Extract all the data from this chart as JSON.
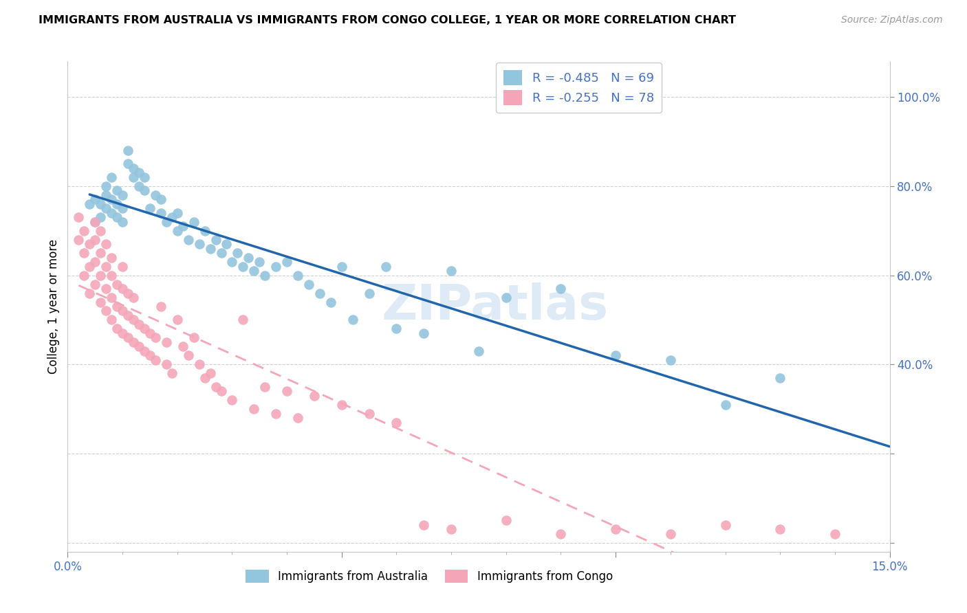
{
  "title": "IMMIGRANTS FROM AUSTRALIA VS IMMIGRANTS FROM CONGO COLLEGE, 1 YEAR OR MORE CORRELATION CHART",
  "source": "Source: ZipAtlas.com",
  "ylabel_label": "College, 1 year or more",
  "xlim": [
    0.0,
    0.15
  ],
  "ylim": [
    -0.02,
    1.08
  ],
  "legend_r_australia": "R = -0.485",
  "legend_n_australia": "N = 69",
  "legend_r_congo": "R = -0.255",
  "legend_n_congo": "N = 78",
  "color_australia": "#92c5de",
  "color_congo": "#f4a6b8",
  "color_line_australia": "#2166ac",
  "color_line_congo": "#f4a6b8",
  "color_axis_labels": "#4472c4",
  "color_title": "#000000",
  "background_color": "#ffffff",
  "grid_color": "#d0d0d0",
  "watermark": "ZIPatlas",
  "australia_x": [
    0.004,
    0.005,
    0.005,
    0.006,
    0.006,
    0.007,
    0.007,
    0.007,
    0.008,
    0.008,
    0.008,
    0.009,
    0.009,
    0.009,
    0.01,
    0.01,
    0.01,
    0.011,
    0.011,
    0.012,
    0.012,
    0.013,
    0.013,
    0.014,
    0.014,
    0.015,
    0.016,
    0.017,
    0.017,
    0.018,
    0.019,
    0.02,
    0.02,
    0.021,
    0.022,
    0.023,
    0.024,
    0.025,
    0.026,
    0.027,
    0.028,
    0.029,
    0.03,
    0.031,
    0.032,
    0.033,
    0.034,
    0.035,
    0.036,
    0.038,
    0.04,
    0.042,
    0.044,
    0.046,
    0.048,
    0.05,
    0.052,
    0.055,
    0.058,
    0.06,
    0.065,
    0.07,
    0.075,
    0.08,
    0.09,
    0.1,
    0.11,
    0.12,
    0.13
  ],
  "australia_y": [
    0.76,
    0.72,
    0.77,
    0.73,
    0.76,
    0.75,
    0.78,
    0.8,
    0.74,
    0.77,
    0.82,
    0.73,
    0.76,
    0.79,
    0.72,
    0.75,
    0.78,
    0.85,
    0.88,
    0.82,
    0.84,
    0.8,
    0.83,
    0.79,
    0.82,
    0.75,
    0.78,
    0.74,
    0.77,
    0.72,
    0.73,
    0.7,
    0.74,
    0.71,
    0.68,
    0.72,
    0.67,
    0.7,
    0.66,
    0.68,
    0.65,
    0.67,
    0.63,
    0.65,
    0.62,
    0.64,
    0.61,
    0.63,
    0.6,
    0.62,
    0.63,
    0.6,
    0.58,
    0.56,
    0.54,
    0.62,
    0.5,
    0.56,
    0.62,
    0.48,
    0.47,
    0.61,
    0.43,
    0.55,
    0.57,
    0.42,
    0.41,
    0.31,
    0.37
  ],
  "congo_x": [
    0.002,
    0.002,
    0.003,
    0.003,
    0.003,
    0.004,
    0.004,
    0.004,
    0.005,
    0.005,
    0.005,
    0.005,
    0.006,
    0.006,
    0.006,
    0.006,
    0.007,
    0.007,
    0.007,
    0.007,
    0.008,
    0.008,
    0.008,
    0.008,
    0.009,
    0.009,
    0.009,
    0.01,
    0.01,
    0.01,
    0.01,
    0.011,
    0.011,
    0.011,
    0.012,
    0.012,
    0.012,
    0.013,
    0.013,
    0.014,
    0.014,
    0.015,
    0.015,
    0.016,
    0.016,
    0.017,
    0.018,
    0.018,
    0.019,
    0.02,
    0.021,
    0.022,
    0.023,
    0.024,
    0.025,
    0.026,
    0.027,
    0.028,
    0.03,
    0.032,
    0.034,
    0.036,
    0.038,
    0.04,
    0.042,
    0.045,
    0.05,
    0.055,
    0.06,
    0.065,
    0.07,
    0.08,
    0.09,
    0.1,
    0.11,
    0.12,
    0.13,
    0.14
  ],
  "congo_y": [
    0.68,
    0.73,
    0.6,
    0.65,
    0.7,
    0.56,
    0.62,
    0.67,
    0.58,
    0.63,
    0.68,
    0.72,
    0.54,
    0.6,
    0.65,
    0.7,
    0.52,
    0.57,
    0.62,
    0.67,
    0.5,
    0.55,
    0.6,
    0.64,
    0.48,
    0.53,
    0.58,
    0.47,
    0.52,
    0.57,
    0.62,
    0.46,
    0.51,
    0.56,
    0.45,
    0.5,
    0.55,
    0.44,
    0.49,
    0.43,
    0.48,
    0.42,
    0.47,
    0.41,
    0.46,
    0.53,
    0.4,
    0.45,
    0.38,
    0.5,
    0.44,
    0.42,
    0.46,
    0.4,
    0.37,
    0.38,
    0.35,
    0.34,
    0.32,
    0.5,
    0.3,
    0.35,
    0.29,
    0.34,
    0.28,
    0.33,
    0.31,
    0.29,
    0.27,
    0.04,
    0.03,
    0.05,
    0.02,
    0.03,
    0.02,
    0.04,
    0.03,
    0.02
  ]
}
